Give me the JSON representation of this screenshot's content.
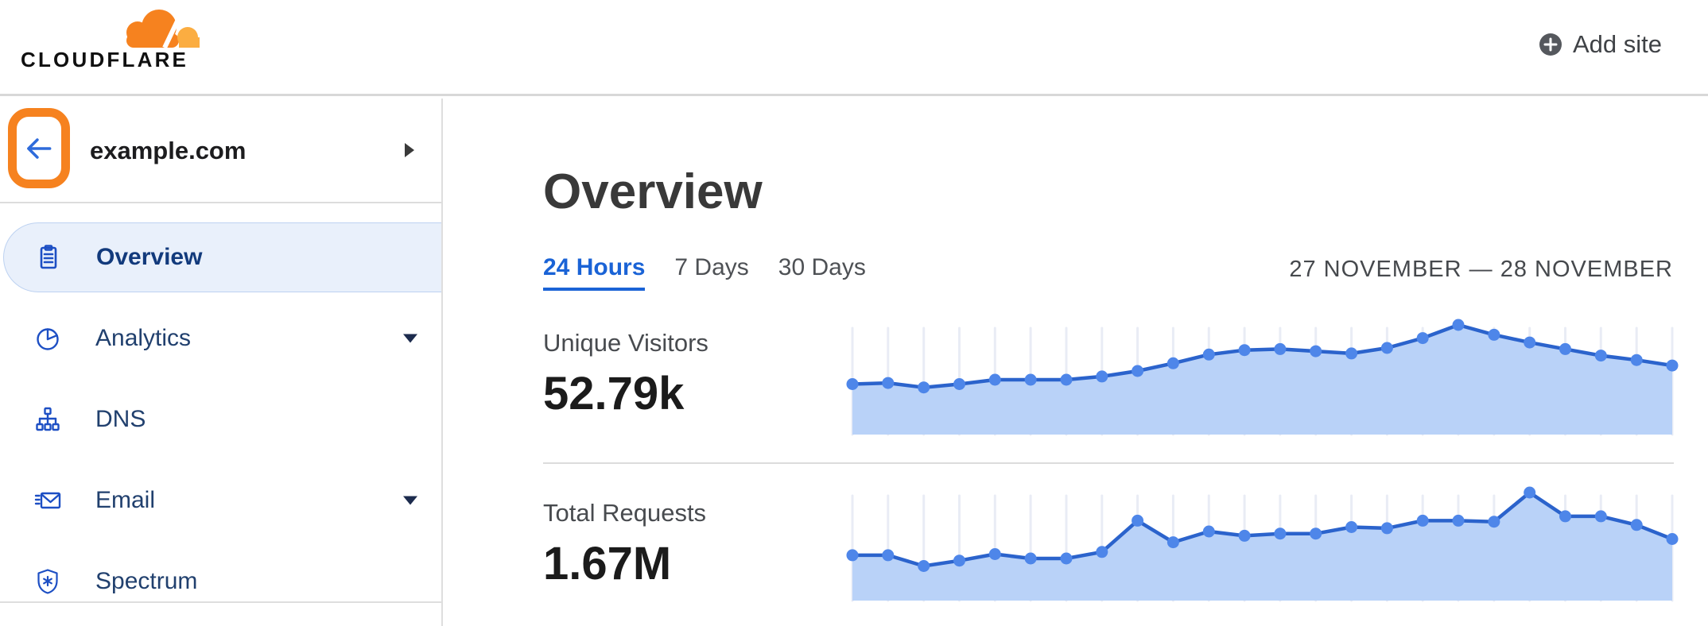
{
  "header": {
    "logo_text": "CLOUDFLARE",
    "add_site_label": "Add site"
  },
  "sidebar": {
    "site_name": "example.com",
    "items": [
      {
        "label": "Overview",
        "icon": "clipboard-icon",
        "selected": true
      },
      {
        "label": "Analytics",
        "icon": "pie-chart-icon",
        "has_submenu": true
      },
      {
        "label": "DNS",
        "icon": "sitemap-icon"
      },
      {
        "label": "Email",
        "icon": "envelope-icon",
        "has_submenu": true
      },
      {
        "label": "Spectrum",
        "icon": "shield-icon"
      }
    ]
  },
  "main": {
    "title": "Overview",
    "tabs": [
      {
        "label": "24 Hours",
        "active": true
      },
      {
        "label": "7 Days",
        "active": false
      },
      {
        "label": "30 Days",
        "active": false
      }
    ],
    "date_range": "27 NOVEMBER — 28 NOVEMBER",
    "metrics": [
      {
        "label": "Unique Visitors",
        "value": "52.79k"
      },
      {
        "label": "Total Requests",
        "value": "1.67M"
      }
    ]
  },
  "chart_data": [
    {
      "type": "area",
      "title": "Unique Visitors",
      "total_label": "52.79k",
      "period": "24 Hours",
      "x_description": "24 evenly spaced hourly points spanning 27 November — 28 November (no axis tick labels shown)",
      "values_percent_of_peak": [
        46,
        47,
        43,
        46,
        50,
        50,
        50,
        53,
        58,
        65,
        73,
        77,
        78,
        76,
        74,
        79,
        88,
        100,
        91,
        84,
        78,
        72,
        68,
        63
      ],
      "estimated": true,
      "grid": "one light vertical gridline per data point",
      "legend": "none",
      "axis_labels": "none shown"
    },
    {
      "type": "area",
      "title": "Total Requests",
      "total_label": "1.67M",
      "period": "24 Hours",
      "x_description": "24 evenly spaced hourly points spanning 27 November — 28 November (no axis tick labels shown)",
      "values_percent_of_peak": [
        42,
        42,
        32,
        37,
        43,
        39,
        39,
        45,
        74,
        54,
        64,
        60,
        62,
        62,
        68,
        67,
        74,
        74,
        73,
        100,
        78,
        78,
        70,
        57
      ],
      "estimated": true,
      "grid": "one light vertical gridline per data point",
      "legend": "none",
      "axis_labels": "none shown"
    }
  ],
  "colors": {
    "cloudflare_orange": "#f6821f",
    "cloudflare_light_orange": "#fbad41",
    "accent_blue": "#1a63d6",
    "nav_icon_blue": "#1d4fc4",
    "selected_item_bg": "#e9f0fb",
    "chart_line": "#2b63cc",
    "chart_dot": "#4e86e9",
    "chart_area": "#b9d2f8",
    "gridline": "#e9ecf5"
  },
  "annotations": {
    "highlight": "orange rounded-rectangle ring drawn around the back-arrow button in the sidebar header",
    "highlight_color": "#f6821f"
  }
}
